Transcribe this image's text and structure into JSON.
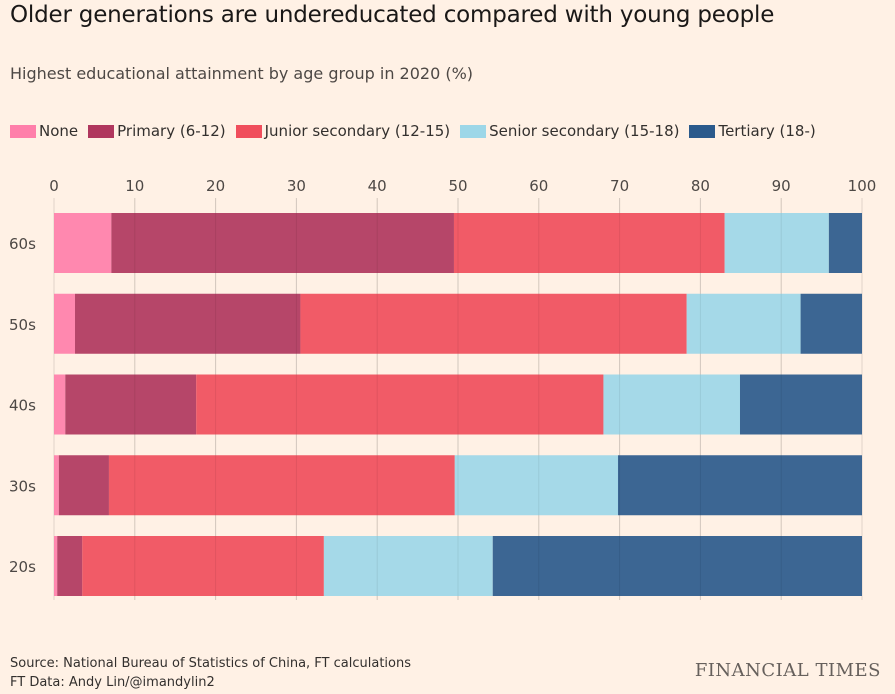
{
  "header": {
    "title": "Older generations are undereducated compared with young people",
    "subtitle": "Highest educational attainment by age group in 2020 (%)"
  },
  "footer": {
    "source": "Source: National Bureau of Statistics of China, FT calculations",
    "credit": "FT Data: Andy Lin/@imandylin2",
    "brand": "FINANCIAL TIMES"
  },
  "chart_data": {
    "type": "bar",
    "orientation": "horizontal",
    "stacked": true,
    "title": "Older generations are undereducated compared with young people",
    "subtitle": "Highest educational attainment by age group in 2020 (%)",
    "categories": [
      "60s",
      "50s",
      "40s",
      "30s",
      "20s"
    ],
    "xlim": [
      0,
      100
    ],
    "xticks": [
      0,
      10,
      20,
      30,
      40,
      50,
      60,
      70,
      80,
      90,
      100
    ],
    "x_axis_position": "top",
    "grid": true,
    "legend_position": "top-left",
    "series": [
      {
        "name": "None",
        "color": "#ff7faa",
        "values": [
          7.1,
          2.6,
          1.4,
          0.6,
          0.4
        ]
      },
      {
        "name": "Primary (6-12)",
        "color": "#b0375e",
        "values": [
          42.4,
          27.9,
          16.2,
          6.2,
          3.1
        ]
      },
      {
        "name": "Junior secondary (12-15)",
        "color": "#f04e5c",
        "values": [
          33.5,
          47.8,
          50.4,
          42.8,
          29.9
        ]
      },
      {
        "name": "Senior secondary (15-18)",
        "color": "#9dd7e8",
        "values": [
          12.9,
          14.1,
          16.9,
          20.2,
          20.9
        ]
      },
      {
        "name": "Tertiary (18-)",
        "color": "#2b5a8c",
        "values": [
          4.1,
          7.6,
          15.1,
          30.2,
          45.7
        ]
      }
    ]
  }
}
